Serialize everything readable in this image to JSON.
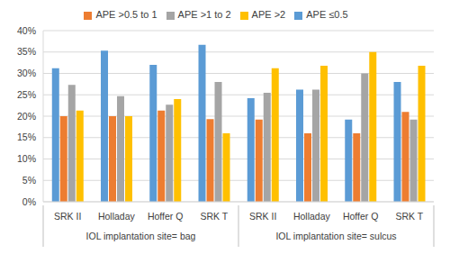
{
  "chart_data": {
    "type": "bar",
    "categories": [
      "SRK II",
      "Holladay",
      "Hoffer Q",
      "SRK T",
      "SRK II",
      "Holladay",
      "Hoffer Q",
      "SRK T"
    ],
    "groups": [
      "IOL implantation site= bag",
      "IOL implantation site= sulcus"
    ],
    "series": [
      {
        "name": "APE ≤0.5",
        "color": "#5B9BD5",
        "values": [
          31.2,
          35.3,
          32,
          36.7,
          24.2,
          26.2,
          19.2,
          28
        ]
      },
      {
        "name": "APE >0.5 to 1",
        "color": "#ED7D31",
        "values": [
          20,
          20,
          21.3,
          19.3,
          19.2,
          16,
          16,
          21
        ]
      },
      {
        "name": "APE >1 to 2",
        "color": "#A5A5A5",
        "values": [
          27.3,
          24.7,
          22.7,
          28,
          25.5,
          26.2,
          30,
          19.2
        ]
      },
      {
        "name": "APE >2",
        "color": "#FFC000",
        "values": [
          21.3,
          20,
          24,
          16,
          31.2,
          31.8,
          35,
          31.8
        ]
      }
    ],
    "ylim": [
      0,
      40
    ],
    "yticks": [
      {
        "value": 0,
        "label": "0%"
      },
      {
        "value": 5,
        "label": "5%"
      },
      {
        "value": 10,
        "label": "10%"
      },
      {
        "value": 15,
        "label": "15%"
      },
      {
        "value": 20,
        "label": "20%"
      },
      {
        "value": 25,
        "label": "25%"
      },
      {
        "value": 30,
        "label": "30%"
      },
      {
        "value": 35,
        "label": "35%"
      },
      {
        "value": 40,
        "label": "40%"
      }
    ],
    "grid": true,
    "legend": "top"
  }
}
